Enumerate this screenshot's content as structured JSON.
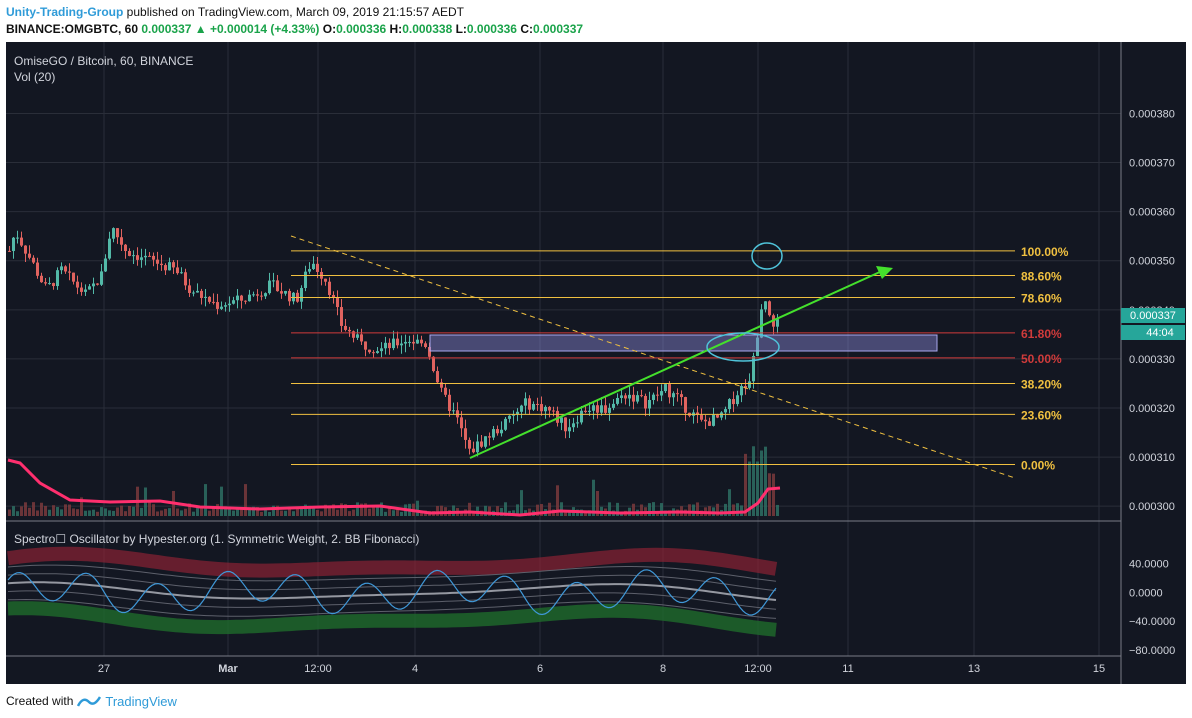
{
  "header": {
    "author": "Unity-Trading-Group",
    "published_text": "published on TradingView.com, March 09, 2019 21:15:57 AEDT",
    "symbol": "BINANCE:OMGBTC, 60",
    "last": "0.000337",
    "change_arrow": "▲",
    "change": "+0.000014 (+4.33%)",
    "o_label": "O:",
    "o_value": "0.000336",
    "h_label": "H:",
    "h_value": "0.000338",
    "l_label": "L:",
    "l_value": "0.000336",
    "c_label": "C:",
    "c_value": "0.000337"
  },
  "panel": {
    "title": "OmiseGO / Bitcoin, 60, BINANCE",
    "volume_label": "Vol (20)",
    "oscillator_label": "Spectro☐ Oscillator by Hypester.org (1. Symmetric Weight, 2. BB Fibonacci)"
  },
  "footer": {
    "created_with": "Created with",
    "brand": "TradingView"
  },
  "colors": {
    "background": "#131722",
    "up": "#53b9a8",
    "down": "#e0635f",
    "fib_yellow": "#f0c040",
    "fib_red": "#d03b3b",
    "trend_green": "#44e02c",
    "highlight_circle": "#4fc3d9",
    "volume_ma": "#ff2f6e",
    "price_tag": "#26a69a"
  },
  "chart_data": {
    "type": "candlestick",
    "symbol": "OMGBTC",
    "ylim": [
      0.000298,
      0.000386
    ],
    "y_ticks": [
      "0.000380",
      "0.000370",
      "0.000360",
      "0.000350",
      "0.000340",
      "0.000330",
      "0.000320",
      "0.000310",
      "0.000300"
    ],
    "x_ticks": [
      "27",
      "Mar",
      "12:00",
      "4",
      "6",
      "8",
      "12:00",
      "11",
      "13",
      "15"
    ],
    "last_price_label": "0.000337",
    "countdown_label": "44:04",
    "fibonacci": [
      {
        "level": "100.00%",
        "price": 0.000352
      },
      {
        "level": "88.60%",
        "price": 0.000347
      },
      {
        "level": "78.60%",
        "price": 0.0003425
      },
      {
        "level": "61.80%",
        "price": 0.0003353
      },
      {
        "level": "50.00%",
        "price": 0.0003302
      },
      {
        "level": "38.20%",
        "price": 0.000325
      },
      {
        "level": "23.60%",
        "price": 0.0003187
      },
      {
        "level": "0.00%",
        "price": 0.0003085
      }
    ],
    "oscillator": {
      "y_ticks": [
        "40.0000",
        "0.0000",
        "−40.0000",
        "−80.0000"
      ],
      "ylim": [
        -80,
        60
      ]
    }
  }
}
